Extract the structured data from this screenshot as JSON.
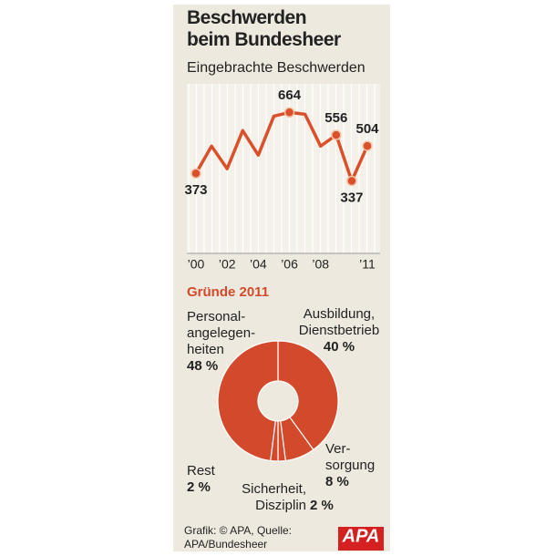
{
  "chart_data": [
    {
      "type": "line",
      "title": "Beschwerden beim Bundesheer",
      "subtitle": "Eingebrachte Beschwerden",
      "categories": [
        "’00",
        null,
        "’02",
        null,
        "’04",
        null,
        "’06",
        null,
        "’08",
        null,
        null,
        "’11"
      ],
      "values": [
        373,
        503,
        395,
        577,
        460,
        646,
        664,
        655,
        503,
        556,
        337,
        504
      ],
      "value_labels": [
        "373",
        null,
        null,
        null,
        null,
        null,
        "664",
        null,
        null,
        "556",
        "337",
        "504"
      ],
      "color": "#d9502b",
      "ylim": [
        0,
        800
      ],
      "grid": true
    },
    {
      "type": "donut",
      "title": "Gründe 2011",
      "categories": [
        [
          "Ausbildung,",
          "Dienstbetrieb"
        ],
        [
          "Ver-",
          "sorgung"
        ],
        [
          "Sicherheit,",
          "Disziplin"
        ],
        [
          "Rest"
        ],
        [
          "Personal-",
          "angelegen-",
          "heiten"
        ]
      ],
      "values": [
        40,
        8,
        2,
        2,
        48
      ],
      "value_labels": [
        "40 %",
        "8 %",
        "2 %",
        "2 %",
        "48 %"
      ],
      "color": "#d24a2b"
    }
  ],
  "source": "Grafik: © APA, Quelle: APA/Bundesheer",
  "logo": "APA"
}
